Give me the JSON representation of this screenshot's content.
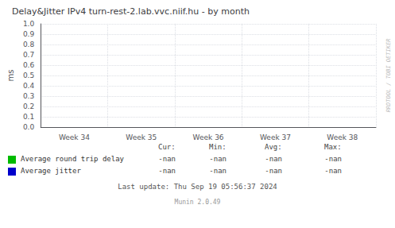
{
  "chart_data": {
    "type": "line",
    "title": "Delay&Jitter IPv4 turn-rest-2.lab.vvc.niif.hu - by month",
    "ylabel": "ms",
    "categories": [
      "Week 34",
      "Week 35",
      "Week 36",
      "Week 37",
      "Week 38"
    ],
    "series": [
      {
        "name": "Average round trip delay",
        "color": "#00bb00",
        "values": [
          null,
          null,
          null,
          null,
          null
        ],
        "stats": [
          "-nan",
          "-nan",
          "-nan",
          "-nan"
        ]
      },
      {
        "name": "Average jitter",
        "color": "#0000cc",
        "values": [
          null,
          null,
          null,
          null,
          null
        ],
        "stats": [
          "-nan",
          "-nan",
          "-nan",
          "-nan"
        ]
      }
    ],
    "table_headers": [
      "Cur:",
      "Min:",
      "Avg:",
      "Max:"
    ],
    "ylim": [
      0.0,
      1.0
    ],
    "yticks": [
      {
        "value": 0.0,
        "label": "0.0"
      },
      0.1,
      0.2,
      0.3,
      0.4,
      0.5,
      0.6,
      0.7,
      0.8,
      0.9,
      {
        "value": 1.0,
        "label": "1.0"
      }
    ],
    "grid": true,
    "annotations": [
      "Last update: Thu Sep 19 05:56:37 2024",
      "Munin 2.0.49",
      "RRDTOOL / TOBI OETIKER"
    ]
  }
}
